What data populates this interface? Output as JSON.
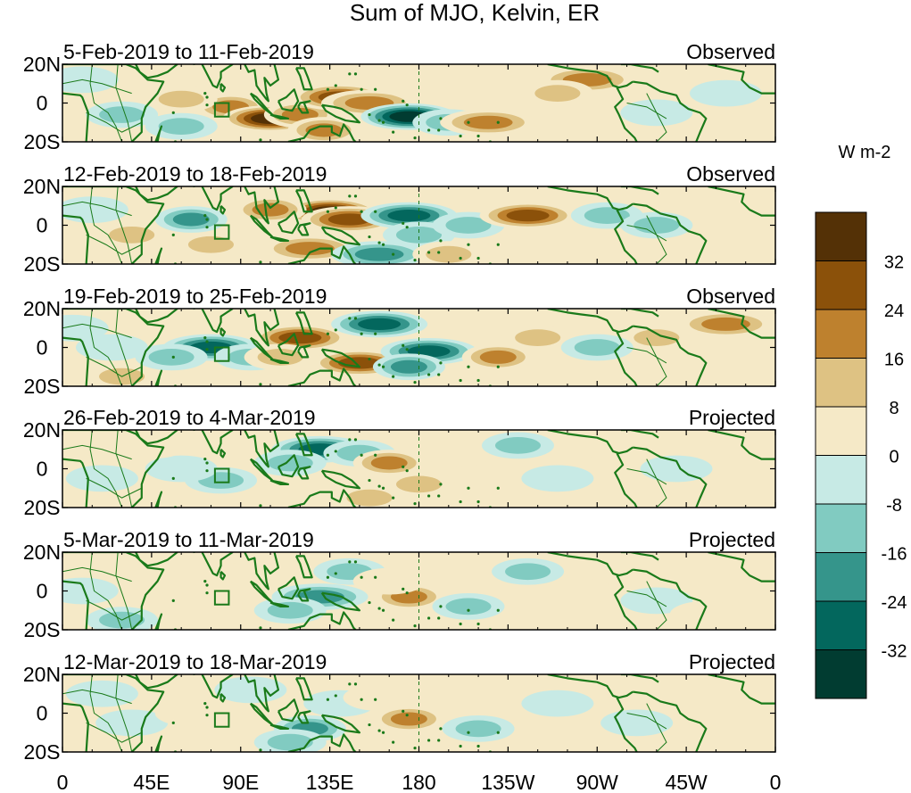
{
  "title": "Sum of MJO, Kelvin, ER",
  "colorbar": {
    "unit": "W m-2",
    "levels": [
      -32,
      -24,
      -16,
      -8,
      0,
      8,
      16,
      24,
      32
    ],
    "colors": [
      "#013c31",
      "#03675d",
      "#35958b",
      "#81cbc1",
      "#c7eae5",
      "#f5e9c7",
      "#dec283",
      "#be812e",
      "#8b510a",
      "#543106"
    ]
  },
  "x_axis": {
    "ticks": [
      {
        "lon": 0,
        "label": "0"
      },
      {
        "lon": 45,
        "label": "45E"
      },
      {
        "lon": 90,
        "label": "90E"
      },
      {
        "lon": 135,
        "label": "135E"
      },
      {
        "lon": 180,
        "label": "180"
      },
      {
        "lon": 225,
        "label": "135W"
      },
      {
        "lon": 270,
        "label": "90W"
      },
      {
        "lon": 315,
        "label": "45W"
      },
      {
        "lon": 360,
        "label": "0"
      }
    ]
  },
  "y_axis": {
    "ticks": [
      {
        "lat": 20,
        "label": "20N"
      },
      {
        "lat": 0,
        "label": "0"
      },
      {
        "lat": -20,
        "label": "20S"
      }
    ]
  },
  "reference_line_lon": 180,
  "highlight_box": {
    "lon": [
      77,
      84
    ],
    "lat": [
      -7,
      0
    ]
  },
  "panels": [
    {
      "date_range": "5-Feb-2019 to 11-Feb-2019",
      "status": "Observed",
      "features": [
        {
          "lon": 85,
          "lat": -2,
          "v": 20
        },
        {
          "lon": 105,
          "lat": -8,
          "v": 38
        },
        {
          "lon": 120,
          "lat": -6,
          "v": 20
        },
        {
          "lon": 140,
          "lat": 3,
          "v": 30
        },
        {
          "lon": 155,
          "lat": 0,
          "v": 22
        },
        {
          "lon": 132,
          "lat": -14,
          "v": 18
        },
        {
          "lon": 175,
          "lat": -7,
          "v": -40
        },
        {
          "lon": 195,
          "lat": -10,
          "v": -16
        },
        {
          "lon": 215,
          "lat": -10,
          "v": 24
        },
        {
          "lon": 265,
          "lat": 12,
          "v": 22
        },
        {
          "lon": 250,
          "lat": 5,
          "v": 12
        },
        {
          "lon": 30,
          "lat": -6,
          "v": -12
        },
        {
          "lon": 60,
          "lat": -12,
          "v": -16
        },
        {
          "lon": 60,
          "lat": 2,
          "v": 10
        },
        {
          "lon": 335,
          "lat": 5,
          "v": -8
        },
        {
          "lon": 300,
          "lat": -5,
          "v": -8
        },
        {
          "lon": 10,
          "lat": 12,
          "v": -6
        }
      ]
    },
    {
      "date_range": "12-Feb-2019 to 18-Feb-2019",
      "status": "Observed",
      "features": [
        {
          "lon": 135,
          "lat": 7,
          "v": 40
        },
        {
          "lon": 145,
          "lat": 3,
          "v": 30
        },
        {
          "lon": 125,
          "lat": -12,
          "v": 24
        },
        {
          "lon": 105,
          "lat": 8,
          "v": 18
        },
        {
          "lon": 75,
          "lat": -10,
          "v": 16
        },
        {
          "lon": 35,
          "lat": -5,
          "v": 10
        },
        {
          "lon": 65,
          "lat": 3,
          "v": -20
        },
        {
          "lon": 175,
          "lat": 5,
          "v": -30
        },
        {
          "lon": 180,
          "lat": -5,
          "v": -14
        },
        {
          "lon": 160,
          "lat": -15,
          "v": -24
        },
        {
          "lon": 205,
          "lat": 0,
          "v": -10
        },
        {
          "lon": 235,
          "lat": 5,
          "v": 28
        },
        {
          "lon": 275,
          "lat": 5,
          "v": -14
        },
        {
          "lon": 300,
          "lat": 0,
          "v": -10
        },
        {
          "lon": 340,
          "lat": 10,
          "v": 8
        },
        {
          "lon": 15,
          "lat": 8,
          "v": -8
        },
        {
          "lon": 195,
          "lat": -15,
          "v": 12
        }
      ]
    },
    {
      "date_range": "19-Feb-2019 to 25-Feb-2019",
      "status": "Observed",
      "features": [
        {
          "lon": 75,
          "lat": 0,
          "v": -28
        },
        {
          "lon": 95,
          "lat": -5,
          "v": -12
        },
        {
          "lon": 55,
          "lat": -5,
          "v": -10
        },
        {
          "lon": 120,
          "lat": 5,
          "v": 30
        },
        {
          "lon": 110,
          "lat": -5,
          "v": 14
        },
        {
          "lon": 150,
          "lat": -8,
          "v": 26
        },
        {
          "lon": 160,
          "lat": 12,
          "v": -32
        },
        {
          "lon": 185,
          "lat": -2,
          "v": -32
        },
        {
          "lon": 175,
          "lat": -10,
          "v": -18
        },
        {
          "lon": 220,
          "lat": -5,
          "v": 20
        },
        {
          "lon": 240,
          "lat": 5,
          "v": 10
        },
        {
          "lon": 335,
          "lat": 12,
          "v": 22
        },
        {
          "lon": 300,
          "lat": 5,
          "v": 12
        },
        {
          "lon": 270,
          "lat": 0,
          "v": -12
        },
        {
          "lon": 25,
          "lat": 0,
          "v": -8
        },
        {
          "lon": 30,
          "lat": -15,
          "v": 10
        },
        {
          "lon": 5,
          "lat": 10,
          "v": -6
        }
      ]
    },
    {
      "date_range": "26-Feb-2019 to 4-Mar-2019",
      "status": "Projected",
      "features": [
        {
          "lon": 130,
          "lat": 10,
          "v": -32
        },
        {
          "lon": 115,
          "lat": 3,
          "v": -16
        },
        {
          "lon": 150,
          "lat": 8,
          "v": -12
        },
        {
          "lon": 165,
          "lat": 3,
          "v": 18
        },
        {
          "lon": 180,
          "lat": -8,
          "v": 14
        },
        {
          "lon": 155,
          "lat": -15,
          "v": 16
        },
        {
          "lon": 200,
          "lat": 8,
          "v": 8
        },
        {
          "lon": 230,
          "lat": 12,
          "v": -12
        },
        {
          "lon": 250,
          "lat": -5,
          "v": -8
        },
        {
          "lon": 80,
          "lat": -6,
          "v": -10
        },
        {
          "lon": 60,
          "lat": 0,
          "v": -8
        },
        {
          "lon": 20,
          "lat": -5,
          "v": -8
        },
        {
          "lon": 45,
          "lat": 12,
          "v": 6
        },
        {
          "lon": 310,
          "lat": 0,
          "v": -6
        },
        {
          "lon": 345,
          "lat": 12,
          "v": 8
        },
        {
          "lon": 275,
          "lat": 12,
          "v": 6
        }
      ]
    },
    {
      "date_range": "5-Mar-2019 to 11-Mar-2019",
      "status": "Projected",
      "features": [
        {
          "lon": 130,
          "lat": -3,
          "v": -22
        },
        {
          "lon": 115,
          "lat": -10,
          "v": -16
        },
        {
          "lon": 145,
          "lat": 10,
          "v": -12
        },
        {
          "lon": 175,
          "lat": -3,
          "v": 20
        },
        {
          "lon": 165,
          "lat": 5,
          "v": 8
        },
        {
          "lon": 205,
          "lat": -8,
          "v": -14
        },
        {
          "lon": 235,
          "lat": 10,
          "v": -10
        },
        {
          "lon": 260,
          "lat": 0,
          "v": 6
        },
        {
          "lon": 300,
          "lat": -5,
          "v": -8
        },
        {
          "lon": 30,
          "lat": -15,
          "v": -12
        },
        {
          "lon": 45,
          "lat": 5,
          "v": 6
        },
        {
          "lon": 80,
          "lat": 8,
          "v": 6
        },
        {
          "lon": 345,
          "lat": 15,
          "v": 8
        },
        {
          "lon": 10,
          "lat": 0,
          "v": -6
        },
        {
          "lon": 325,
          "lat": -12,
          "v": 6
        }
      ]
    },
    {
      "date_range": "12-Mar-2019 to 18-Mar-2019",
      "status": "Projected",
      "features": [
        {
          "lon": 125,
          "lat": -8,
          "v": -20
        },
        {
          "lon": 115,
          "lat": -15,
          "v": -14
        },
        {
          "lon": 140,
          "lat": 5,
          "v": -8
        },
        {
          "lon": 175,
          "lat": -3,
          "v": 18
        },
        {
          "lon": 160,
          "lat": 8,
          "v": 6
        },
        {
          "lon": 210,
          "lat": -8,
          "v": -10
        },
        {
          "lon": 250,
          "lat": 5,
          "v": -8
        },
        {
          "lon": 290,
          "lat": -5,
          "v": -6
        },
        {
          "lon": 35,
          "lat": -5,
          "v": -8
        },
        {
          "lon": 65,
          "lat": 0,
          "v": 5
        },
        {
          "lon": 340,
          "lat": 10,
          "v": 5
        },
        {
          "lon": 95,
          "lat": 12,
          "v": -6
        },
        {
          "lon": 20,
          "lat": 10,
          "v": -5
        }
      ]
    }
  ]
}
